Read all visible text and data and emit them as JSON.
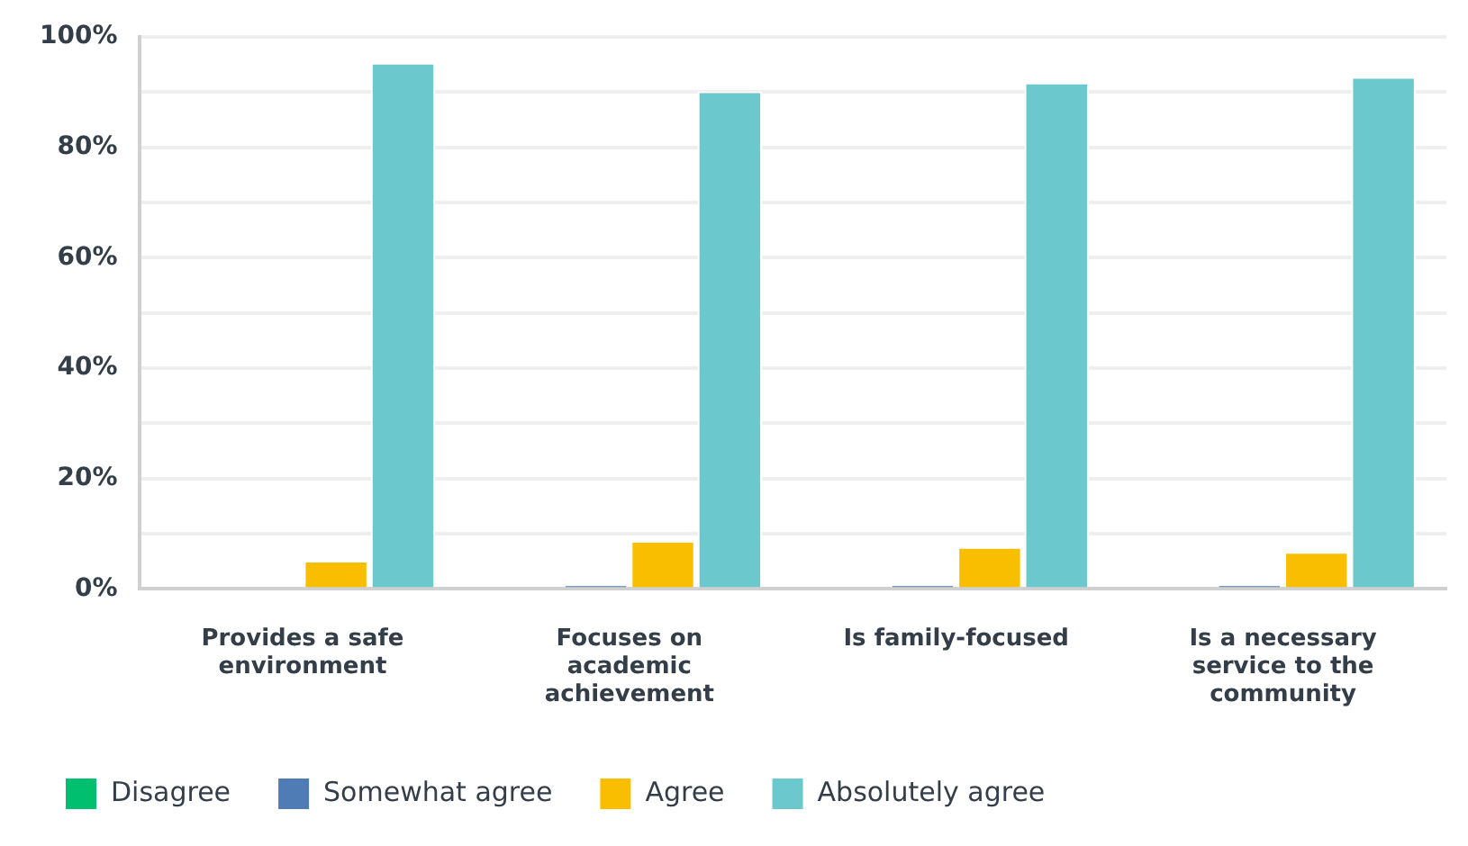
{
  "chart_data": {
    "type": "bar",
    "categories": [
      "Provides a safe environment",
      "Focuses on academic achievement",
      "Is family-focused",
      "Is a necessary service to the community"
    ],
    "series": [
      {
        "name": "Disagree",
        "color": "#00bf6f",
        "values": [
          0,
          0,
          0,
          0
        ]
      },
      {
        "name": "Somewhat agree",
        "color": "#507cb6",
        "values": [
          0,
          0.7,
          0.7,
          0.7
        ]
      },
      {
        "name": "Agree",
        "color": "#f9be00",
        "values": [
          5.1,
          8.7,
          7.6,
          6.7
        ]
      },
      {
        "name": "Absolutely agree",
        "color": "#6bc8cd",
        "values": [
          95.3,
          90.1,
          91.7,
          92.7
        ]
      }
    ],
    "ylim": [
      0,
      100
    ],
    "yticks": [
      {
        "value": 0,
        "label": "0%"
      },
      {
        "value": 10,
        "label": null
      },
      {
        "value": 20,
        "label": "20%"
      },
      {
        "value": 30,
        "label": null
      },
      {
        "value": 40,
        "label": "40%"
      },
      {
        "value": 50,
        "label": null
      },
      {
        "value": 60,
        "label": "60%"
      },
      {
        "value": 70,
        "label": null
      },
      {
        "value": 80,
        "label": "80%"
      },
      {
        "value": 90,
        "label": null
      },
      {
        "value": 100,
        "label": "100%"
      }
    ],
    "grid": "y",
    "legend": "bottom"
  }
}
